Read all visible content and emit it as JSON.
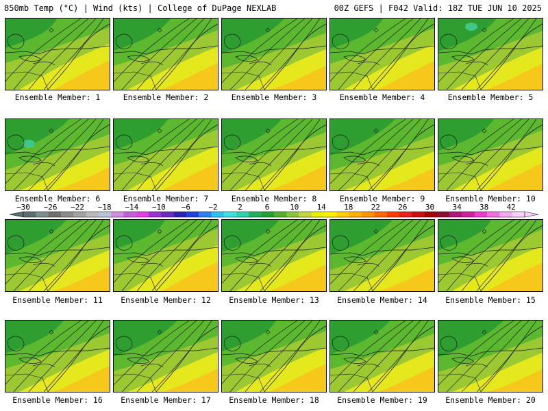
{
  "header": {
    "left": "850mb Temp (°C) | Wind (kts) | College of DuPage NEXLAB",
    "right": "00Z GEFS | F042 Valid: 18Z TUE JUN 10 2025"
  },
  "members": [
    "Ensemble Member: 1",
    "Ensemble Member: 2",
    "Ensemble Member: 3",
    "Ensemble Member: 4",
    "Ensemble Member: 5",
    "Ensemble Member: 6",
    "Ensemble Member: 7",
    "Ensemble Member: 8",
    "Ensemble Member: 9",
    "Ensemble Member: 10",
    "Ensemble Member: 11",
    "Ensemble Member: 12",
    "Ensemble Member: 13",
    "Ensemble Member: 14",
    "Ensemble Member: 15",
    "Ensemble Member: 16",
    "Ensemble Member: 17",
    "Ensemble Member: 18",
    "Ensemble Member: 19",
    "Ensemble Member: 20"
  ],
  "colorbar": {
    "labels": [
      "−30",
      "−26",
      "−22",
      "−18",
      "−14",
      "−10",
      "−6",
      "−2",
      "2",
      "6",
      "10",
      "14",
      "18",
      "22",
      "26",
      "30",
      "34",
      "38",
      "42"
    ],
    "colors": [
      "#5a6f6f",
      "#7d8c8c",
      "#6f6f6f",
      "#8a8a8a",
      "#a3a3a3",
      "#b9b9b9",
      "#b8c4d8",
      "#d08ce0",
      "#c55fd8",
      "#e040e0",
      "#9b30d0",
      "#6a2ac0",
      "#3020b0",
      "#2040e0",
      "#2e7ff0",
      "#30c0f0",
      "#40e0e0",
      "#30d0a8",
      "#20b060",
      "#26a035",
      "#55b030",
      "#8cc63f",
      "#c0d840",
      "#e8f000",
      "#fff000",
      "#ffd000",
      "#ffb000",
      "#ff9000",
      "#ff6a00",
      "#ff3c00",
      "#e82020",
      "#c81010",
      "#a00808",
      "#8a1030",
      "#b01878",
      "#d020a0",
      "#e840c8",
      "#f070e0",
      "#f4a8f0",
      "#f8d0f8"
    ]
  },
  "legend_palette": {
    "dark_green": "#2e9e30",
    "green": "#5cb82e",
    "yellow_green": "#9cc832",
    "yellow": "#e6e81e",
    "gold": "#f6c81c",
    "teal": "#40c888",
    "lines": "#1a1a1a"
  }
}
